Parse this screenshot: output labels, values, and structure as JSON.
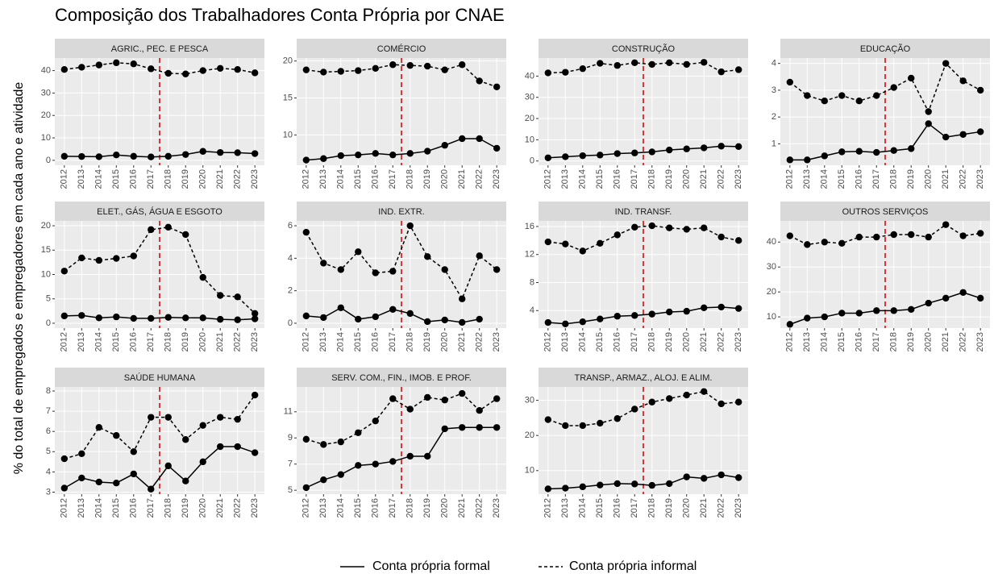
{
  "title": "Composição dos Trabalhadores Conta Própria por CNAE",
  "y_label": "% do total de empregados e empregadores em cada ano e atividade",
  "chart_data": [
    {
      "type": "line",
      "title": "AGRIC., PEC. E PESCA",
      "x": [
        2012,
        2013,
        2014,
        2015,
        2016,
        2017,
        2018,
        2019,
        2020,
        2021,
        2022,
        2023
      ],
      "xlim": [
        2011.45,
        2023.55
      ],
      "ylim": [
        -2.2,
        45.6
      ],
      "yticks": [
        0,
        10,
        20,
        30,
        40
      ],
      "grid": true,
      "reference_line": {
        "x": 2017.5,
        "color": "#cc0000"
      },
      "series": [
        {
          "name": "Conta própria formal",
          "color": "#000000",
          "style": "solid",
          "values": [
            1.8,
            1.7,
            1.6,
            2.4,
            1.8,
            1.5,
            1.8,
            2.6,
            4.0,
            3.5,
            3.4,
            3.0
          ]
        },
        {
          "name": "Conta própria informal",
          "color": "#000000",
          "style": "dashed",
          "values": [
            40.5,
            41.5,
            42.5,
            43.5,
            43,
            40.8,
            38.8,
            38.5,
            40,
            41,
            40.5,
            39
          ]
        }
      ]
    },
    {
      "type": "line",
      "title": "COMÉRCIO",
      "x": [
        2012,
        2013,
        2014,
        2015,
        2016,
        2017,
        2018,
        2019,
        2020,
        2021,
        2022,
        2023
      ],
      "xlim": [
        2011.45,
        2023.55
      ],
      "ylim": [
        5.9,
        20.4
      ],
      "yticks": [
        10,
        15,
        20
      ],
      "grid": true,
      "reference_line": {
        "x": 2017.5,
        "color": "#cc0000"
      },
      "series": [
        {
          "name": "Conta própria formal",
          "color": "#000000",
          "style": "solid",
          "values": [
            6.6,
            6.8,
            7.2,
            7.3,
            7.5,
            7.3,
            7.5,
            7.8,
            8.6,
            9.5,
            9.5,
            8.2
          ]
        },
        {
          "name": "Conta própria informal",
          "color": "#000000",
          "style": "dashed",
          "values": [
            18.8,
            18.5,
            18.6,
            18.7,
            19,
            19.5,
            19.4,
            19.3,
            18.8,
            19.5,
            17.3,
            16.5
          ]
        }
      ]
    },
    {
      "type": "line",
      "title": "CONSTRUÇÃO",
      "x": [
        2012,
        2013,
        2014,
        2015,
        2016,
        2017,
        2018,
        2019,
        2020,
        2021,
        2022,
        2023
      ],
      "xlim": [
        2011.45,
        2023.55
      ],
      "ylim": [
        -2,
        48.5
      ],
      "yticks": [
        0,
        10,
        20,
        30,
        40
      ],
      "grid": true,
      "reference_line": {
        "x": 2017.5,
        "color": "#cc0000"
      },
      "series": [
        {
          "name": "Conta própria formal",
          "color": "#000000",
          "style": "solid",
          "values": [
            1.5,
            2,
            2.5,
            2.8,
            3.5,
            3.8,
            4.3,
            5.2,
            5.7,
            6.2,
            7,
            6.8
          ]
        },
        {
          "name": "Conta própria informal",
          "color": "#000000",
          "style": "dashed",
          "values": [
            41.5,
            41.8,
            43.5,
            46,
            45,
            46.3,
            45.5,
            46.3,
            45.5,
            46.5,
            42,
            43
          ]
        }
      ]
    },
    {
      "type": "line",
      "title": "EDUCAÇÃO",
      "x": [
        2012,
        2013,
        2014,
        2015,
        2016,
        2017,
        2018,
        2019,
        2020,
        2021,
        2022,
        2023
      ],
      "xlim": [
        2011.45,
        2023.55
      ],
      "ylim": [
        0.2,
        4.2
      ],
      "yticks": [
        1,
        2,
        3,
        4
      ],
      "grid": true,
      "reference_line": {
        "x": 2017.5,
        "color": "#cc0000"
      },
      "series": [
        {
          "name": "Conta própria formal",
          "color": "#000000",
          "style": "solid",
          "values": [
            0.4,
            0.4,
            0.55,
            0.7,
            0.72,
            0.68,
            0.75,
            0.82,
            1.75,
            1.25,
            1.35,
            1.45
          ]
        },
        {
          "name": "Conta própria informal",
          "color": "#000000",
          "style": "dashed",
          "values": [
            3.3,
            2.8,
            2.6,
            2.8,
            2.6,
            2.8,
            3.1,
            3.45,
            2.2,
            4.0,
            3.35,
            3.0
          ]
        }
      ]
    },
    {
      "type": "line",
      "title": "ELET., GÁS, ÁGUA E ESGOTO",
      "x": [
        2012,
        2013,
        2014,
        2015,
        2016,
        2017,
        2018,
        2019,
        2020,
        2021,
        2022,
        2023
      ],
      "xlim": [
        2011.45,
        2023.55
      ],
      "ylim": [
        -1,
        21
      ],
      "yticks": [
        0,
        5,
        10,
        15,
        20
      ],
      "grid": true,
      "reference_line": {
        "x": 2017.5,
        "color": "#cc0000"
      },
      "series": [
        {
          "name": "Conta própria formal",
          "color": "#000000",
          "style": "solid",
          "values": [
            1.5,
            1.6,
            1.1,
            1.3,
            1.0,
            1.0,
            1.2,
            1.1,
            1.1,
            0.8,
            0.7,
            0.9
          ]
        },
        {
          "name": "Conta própria informal",
          "color": "#000000",
          "style": "dashed",
          "values": [
            10.7,
            13.4,
            12.9,
            13.3,
            13.8,
            19.2,
            19.7,
            18.2,
            9.4,
            5.7,
            5.4,
            2.0
          ]
        }
      ]
    },
    {
      "type": "line",
      "title": "IND. EXTR.",
      "x": [
        2012,
        2013,
        2014,
        2015,
        2016,
        2017,
        2018,
        2019,
        2020,
        2021,
        2022,
        2023
      ],
      "xlim": [
        2011.45,
        2023.55
      ],
      "ylim": [
        -0.3,
        6.3
      ],
      "yticks": [
        0,
        2,
        4,
        6
      ],
      "grid": true,
      "reference_line": {
        "x": 2017.5,
        "color": "#cc0000"
      },
      "series": [
        {
          "name": "Conta própria formal",
          "color": "#000000",
          "style": "solid",
          "values": [
            0.45,
            0.35,
            0.95,
            0.25,
            0.4,
            0.85,
            0.6,
            0.1,
            0.2,
            0.05,
            0.25,
            null
          ]
        },
        {
          "name": "Conta própria informal",
          "color": "#000000",
          "style": "dashed",
          "values": [
            5.6,
            3.7,
            3.3,
            4.4,
            3.1,
            3.2,
            6.0,
            4.1,
            3.3,
            1.5,
            4.15,
            3.3
          ]
        }
      ]
    },
    {
      "type": "line",
      "title": "IND. TRANSF.",
      "x": [
        2012,
        2013,
        2014,
        2015,
        2016,
        2017,
        2018,
        2019,
        2020,
        2021,
        2022,
        2023
      ],
      "xlim": [
        2011.45,
        2023.55
      ],
      "ylim": [
        1.5,
        16.8
      ],
      "yticks": [
        4,
        8,
        12,
        16
      ],
      "grid": true,
      "reference_line": {
        "x": 2017.5,
        "color": "#cc0000"
      },
      "series": [
        {
          "name": "Conta própria formal",
          "color": "#000000",
          "style": "solid",
          "values": [
            2.3,
            2.1,
            2.4,
            2.8,
            3.2,
            3.3,
            3.5,
            3.8,
            3.9,
            4.4,
            4.5,
            4.3
          ]
        },
        {
          "name": "Conta própria informal",
          "color": "#000000",
          "style": "dashed",
          "values": [
            13.8,
            13.5,
            12.5,
            13.6,
            14.8,
            15.9,
            16.1,
            15.8,
            15.6,
            15.8,
            14.5,
            14.0
          ]
        }
      ]
    },
    {
      "type": "line",
      "title": "OUTROS SERVIÇOS",
      "x": [
        2012,
        2013,
        2014,
        2015,
        2016,
        2017,
        2018,
        2019,
        2020,
        2021,
        2022,
        2023
      ],
      "xlim": [
        2011.45,
        2023.55
      ],
      "ylim": [
        5.5,
        48.5
      ],
      "yticks": [
        10,
        20,
        30,
        40
      ],
      "grid": true,
      "reference_line": {
        "x": 2017.5,
        "color": "#cc0000"
      },
      "series": [
        {
          "name": "Conta própria formal",
          "color": "#000000",
          "style": "solid",
          "values": [
            7,
            9.5,
            10,
            11.5,
            11.5,
            12.5,
            12.5,
            13,
            15.5,
            17.5,
            19.8,
            17.5
          ]
        },
        {
          "name": "Conta própria informal",
          "color": "#000000",
          "style": "dashed",
          "values": [
            42.5,
            39,
            40,
            39.5,
            42,
            42,
            43,
            43,
            42,
            47,
            42.5,
            43.5
          ]
        }
      ]
    },
    {
      "type": "line",
      "title": "SAÚDE HUMANA",
      "x": [
        2012,
        2013,
        2014,
        2015,
        2016,
        2017,
        2018,
        2019,
        2020,
        2021,
        2022,
        2023
      ],
      "xlim": [
        2011.45,
        2023.55
      ],
      "ylim": [
        2.9,
        8.2
      ],
      "yticks": [
        3,
        4,
        5,
        6,
        7,
        8
      ],
      "grid": true,
      "reference_line": {
        "x": 2017.5,
        "color": "#cc0000"
      },
      "series": [
        {
          "name": "Conta própria formal",
          "color": "#000000",
          "style": "solid",
          "values": [
            3.2,
            3.7,
            3.5,
            3.45,
            3.9,
            3.15,
            4.3,
            3.55,
            4.5,
            5.25,
            5.25,
            4.95
          ]
        },
        {
          "name": "Conta própria informal",
          "color": "#000000",
          "style": "dashed",
          "values": [
            4.65,
            4.9,
            6.2,
            5.8,
            5.0,
            6.7,
            6.7,
            5.6,
            6.3,
            6.7,
            6.6,
            7.8
          ]
        }
      ]
    },
    {
      "type": "line",
      "title": "SERV. COM., FIN., IMOB. E PROF.",
      "x": [
        2012,
        2013,
        2014,
        2015,
        2016,
        2017,
        2018,
        2019,
        2020,
        2021,
        2022,
        2023
      ],
      "xlim": [
        2011.45,
        2023.55
      ],
      "ylim": [
        4.7,
        12.9
      ],
      "yticks": [
        5,
        7,
        9,
        11
      ],
      "grid": true,
      "reference_line": {
        "x": 2017.5,
        "color": "#cc0000"
      },
      "series": [
        {
          "name": "Conta própria formal",
          "color": "#000000",
          "style": "solid",
          "values": [
            5.2,
            5.8,
            6.2,
            6.9,
            7.0,
            7.2,
            7.6,
            7.6,
            9.7,
            9.8,
            9.8,
            9.8
          ]
        },
        {
          "name": "Conta própria informal",
          "color": "#000000",
          "style": "dashed",
          "values": [
            8.9,
            8.5,
            8.7,
            9.4,
            10.3,
            12.0,
            11.2,
            12.1,
            11.9,
            12.4,
            11.1,
            12.0
          ]
        }
      ]
    },
    {
      "type": "line",
      "title": "TRANSP., ARMAZ., ALOJ. E ALIM.",
      "x": [
        2012,
        2013,
        2014,
        2015,
        2016,
        2017,
        2018,
        2019,
        2020,
        2021,
        2022,
        2023
      ],
      "xlim": [
        2011.45,
        2023.55
      ],
      "ylim": [
        3.3,
        33.8
      ],
      "yticks": [
        10,
        20,
        30
      ],
      "grid": true,
      "reference_line": {
        "x": 2017.5,
        "color": "#cc0000"
      },
      "series": [
        {
          "name": "Conta própria formal",
          "color": "#000000",
          "style": "solid",
          "values": [
            4.8,
            5,
            5.4,
            5.9,
            6.3,
            6.2,
            5.8,
            6.3,
            8.2,
            7.8,
            8.8,
            8.0
          ]
        },
        {
          "name": "Conta própria informal",
          "color": "#000000",
          "style": "dashed",
          "values": [
            24.5,
            22.8,
            22.8,
            23.5,
            24.8,
            27.5,
            29.5,
            30.5,
            31.5,
            32.5,
            29,
            29.5
          ]
        }
      ]
    }
  ]
}
